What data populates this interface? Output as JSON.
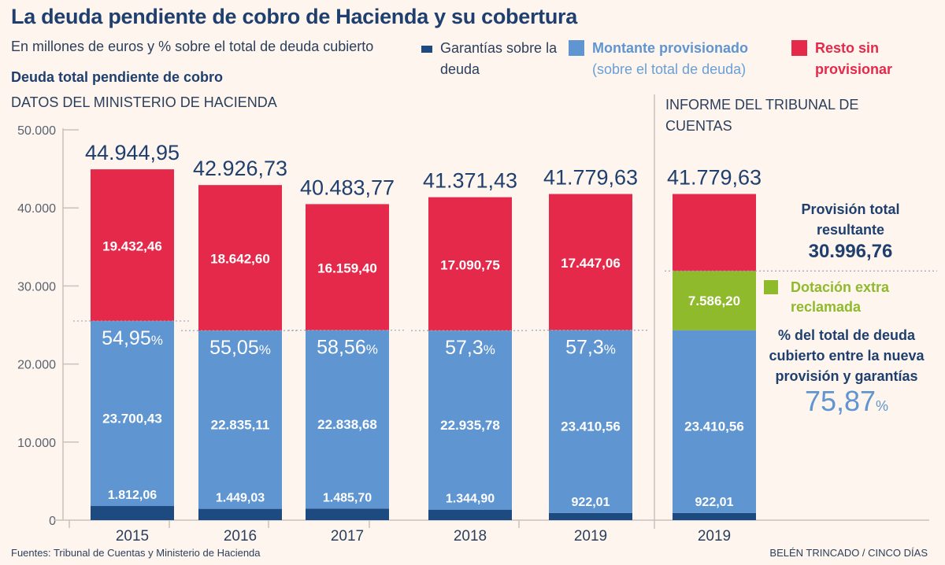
{
  "header": {
    "title": "La deuda pendiente de cobro de Hacienda y su cobertura",
    "subtitle": "En millones de euros y % sobre el total de deuda cubierto",
    "series_title": "Deuda total pendiente de cobro",
    "section_left": "DATOS DEL MINISTERIO DE HACIENDA",
    "section_right": "INFORME DEL TRIBUNAL DE CUENTAS"
  },
  "legend": {
    "garantias": "Garantías sobre la deuda",
    "provisionado_strong": "Montante provisionado",
    "provisionado_sub": "(sobre el total de deuda)",
    "resto": "Resto sin provisionar",
    "dotacion": "Dotación extra reclamada"
  },
  "side_panel": {
    "provision_label": "Provisión total resultante",
    "provision_value": "30.996,76",
    "coverage_label": "% del total de deuda cubierto entre la nueva provisión y garantías",
    "coverage_value": "75,87",
    "coverage_unit": "%"
  },
  "footer": {
    "source": "Fuentes: Tribunal de Cuentas y Ministerio de Hacienda",
    "credit": "BELÉN TRINCADO / CINCO DÍAS"
  },
  "colors": {
    "garantias": "#1d4a80",
    "provisionado": "#5f95d0",
    "resto": "#e5294a",
    "dotacion": "#8fba2c",
    "axis": "#c9c2bc",
    "tick_text": "#5a6270",
    "total_text": "#1f3f6e"
  },
  "chart_data": {
    "type": "bar",
    "stacked": true,
    "title": "La deuda pendiente de cobro de Hacienda y su cobertura",
    "ylabel": "Millones de euros",
    "ylim": [
      0,
      50000
    ],
    "yticks": [
      0,
      10000,
      20000,
      30000,
      40000,
      50000
    ],
    "ytick_labels": [
      "0",
      "10.000",
      "20.000",
      "30.000",
      "40.000",
      "50.000"
    ],
    "grid": false,
    "legend": "top",
    "categories": [
      "2015",
      "2016",
      "2017",
      "2018",
      "2019",
      "2019"
    ],
    "groups": [
      "Ministerio de Hacienda",
      "Ministerio de Hacienda",
      "Ministerio de Hacienda",
      "Ministerio de Hacienda",
      "Ministerio de Hacienda",
      "Tribunal de Cuentas"
    ],
    "totals": [
      44944.95,
      42926.73,
      40483.77,
      41371.43,
      41779.63,
      41779.63
    ],
    "total_labels": [
      "44.944,95",
      "42.926,73",
      "40.483,77",
      "41.371,43",
      "41.779,63",
      "41.779,63"
    ],
    "coverage_pct": [
      54.95,
      55.05,
      58.56,
      57.3,
      57.3,
      null
    ],
    "coverage_labels": [
      "54,95",
      "55,05",
      "58,56",
      "57,3",
      "57,3",
      null
    ],
    "series": [
      {
        "key": "garantias",
        "name": "Garantías sobre la deuda",
        "values": [
          1812.06,
          1449.03,
          1485.7,
          1344.9,
          922.01,
          922.01
        ],
        "labels": [
          "1.812,06",
          "1.449,03",
          "1.485,70",
          "1.344,90",
          "922,01",
          "922,01"
        ]
      },
      {
        "key": "provisionado",
        "name": "Montante provisionado",
        "values": [
          23700.43,
          22835.11,
          22838.68,
          22935.78,
          23410.56,
          23410.56
        ],
        "labels": [
          "23.700,43",
          "22.835,11",
          "22.838,68",
          "22.935,78",
          "23.410,56",
          "23.410,56"
        ]
      },
      {
        "key": "dotacion",
        "name": "Dotación extra reclamada",
        "values": [
          0,
          0,
          0,
          0,
          0,
          7586.2
        ],
        "labels": [
          null,
          null,
          null,
          null,
          null,
          "7.586,20"
        ]
      },
      {
        "key": "resto",
        "name": "Resto sin provisionar",
        "values": [
          19432.46,
          18642.6,
          16159.4,
          17090.75,
          17447.06,
          9860.86
        ],
        "labels": [
          "19.432,46",
          "18.642,60",
          "16.159,40",
          "17.090,75",
          "17.447,06",
          null
        ]
      }
    ]
  }
}
